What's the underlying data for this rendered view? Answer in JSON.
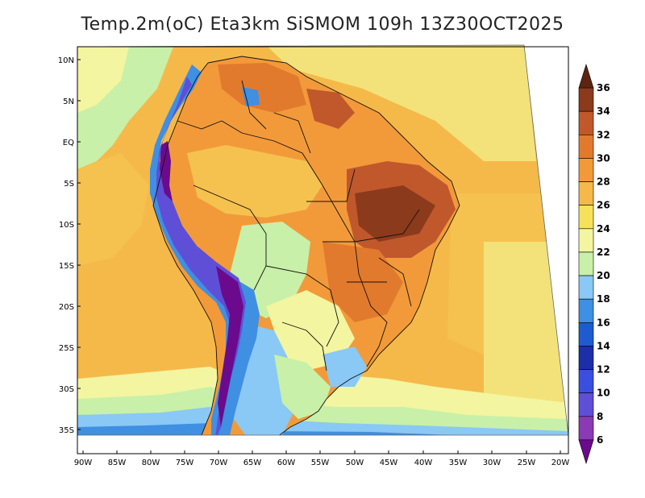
{
  "title": "Temp.2m(oC) Eta3km SiSMOM 109h 13Z30OCT2025",
  "lat_labels": [
    "10N",
    "5N",
    "EQ",
    "5S",
    "10S",
    "15S",
    "20S",
    "25S",
    "30S",
    "35S"
  ],
  "lon_labels": [
    "90W",
    "85W",
    "80W",
    "75W",
    "70W",
    "65W",
    "60W",
    "55W",
    "50W",
    "45W",
    "40W",
    "35W",
    "30W",
    "25W",
    "20W"
  ],
  "colorbar": {
    "labels": [
      "6",
      "8",
      "10",
      "12",
      "14",
      "16",
      "18",
      "20",
      "22",
      "24",
      "26",
      "28",
      "30",
      "32",
      "34",
      "36"
    ],
    "colors": [
      "#6b0a8c",
      "#8a3ab5",
      "#5e4fd6",
      "#3a4fe0",
      "#1c2fa8",
      "#1f5bd0",
      "#3f8fe3",
      "#8ac8f5",
      "#c8f0a8",
      "#f3f5a0",
      "#f5e25a",
      "#f5b94a",
      "#f29a3a",
      "#e27a2e",
      "#c0582c",
      "#8c3a1c",
      "#5c2412"
    ]
  }
}
